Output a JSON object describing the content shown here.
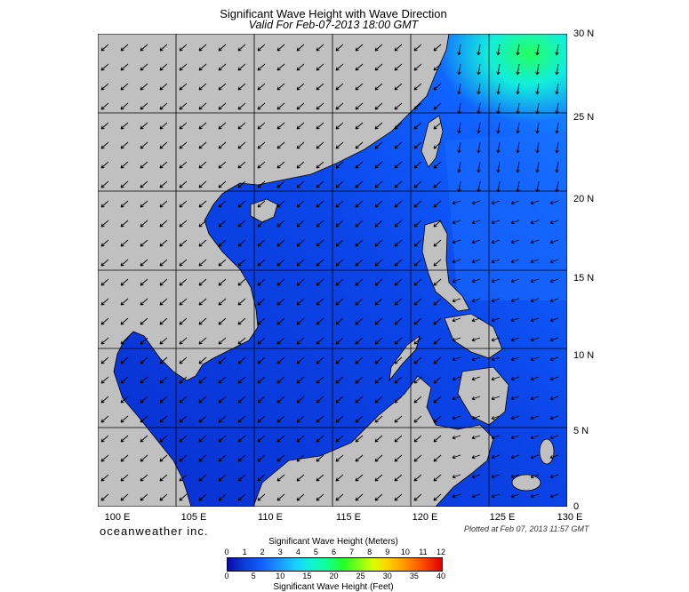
{
  "header": {
    "title": "Significant Wave Height with Wave Direction",
    "subtitle": "Valid For Feb-07-2013 18:00 GMT"
  },
  "map": {
    "lat_labels": [
      "30 N",
      "25 N",
      "20 N",
      "15 N",
      "10 N",
      "5 N",
      "0"
    ],
    "lon_labels": [
      "100 E",
      "105 E",
      "110 E",
      "115 E",
      "120 E",
      "125 E",
      "130 E"
    ],
    "colors": {
      "land": "#c0c0c0",
      "ocean_low": "#0a2fd0",
      "ocean_mid": "#1060ff",
      "ocean_high": "#12eedc",
      "peak": "#22ff60"
    },
    "dominant_direction": "from northeast"
  },
  "footer": {
    "brand": "oceanweather inc.",
    "plotted": "Plotted at Feb 07, 2013 11:57 GMT"
  },
  "legend": {
    "meters_title": "Significant Wave Height (Meters)",
    "feet_title": "Significant Wave Height (Feet)",
    "meters_ticks": [
      "0",
      "1",
      "2",
      "3",
      "4",
      "5",
      "6",
      "7",
      "8",
      "9",
      "10",
      "11",
      "12"
    ],
    "feet_ticks": [
      "0",
      "5",
      "10",
      "15",
      "20",
      "25",
      "30",
      "35",
      "40"
    ]
  }
}
